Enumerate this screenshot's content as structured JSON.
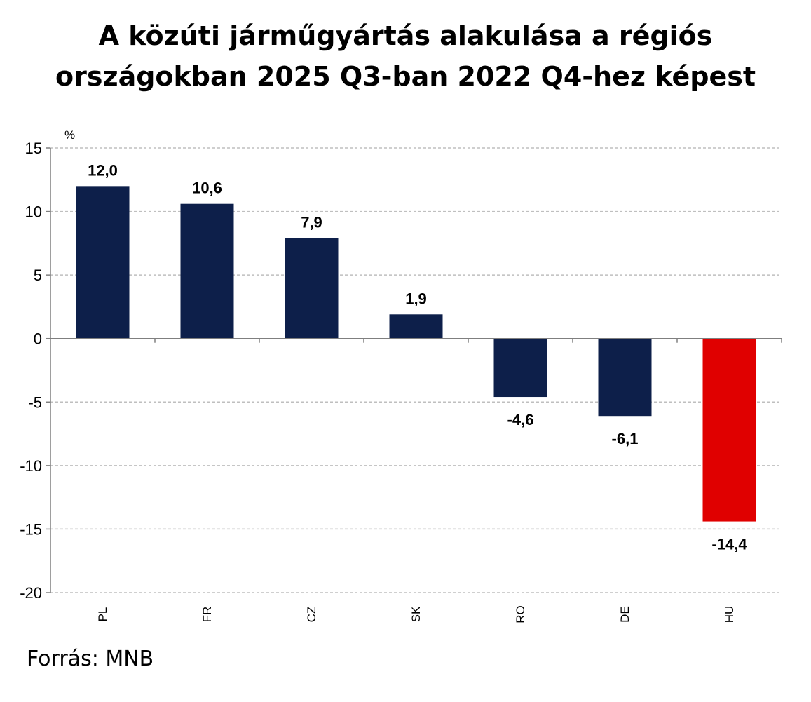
{
  "title_line1": "A közúti járműgyártás alakulása a régiós",
  "title_line2": "országokban 2025 Q3-ban 2022 Q4-hez képest",
  "source": "Forrás: MNB",
  "colors": {
    "bar": "#0d1f4a",
    "highlight": "#e00000",
    "grid": "#bfbfbf",
    "axis": "#7f7f7f"
  },
  "chart_data": {
    "type": "bar",
    "title": "A közúti járműgyártás alakulása a régiós országokban 2025 Q3-ban 2022 Q4-hez képest",
    "ylabel": "%",
    "ylim": [
      -20,
      15
    ],
    "yticks": [
      15,
      10,
      5,
      0,
      -5,
      -10,
      -15,
      -20
    ],
    "grid": true,
    "categories": [
      "PL",
      "FR",
      "CZ",
      "SK",
      "RO",
      "DE",
      "HU"
    ],
    "values": [
      12.0,
      10.6,
      7.9,
      1.9,
      -4.6,
      -6.1,
      -14.4
    ],
    "value_labels": [
      "12,0",
      "10,6",
      "7,9",
      "1,9",
      "-4,6",
      "-6,1",
      "-14,4"
    ],
    "highlight": "HU"
  }
}
